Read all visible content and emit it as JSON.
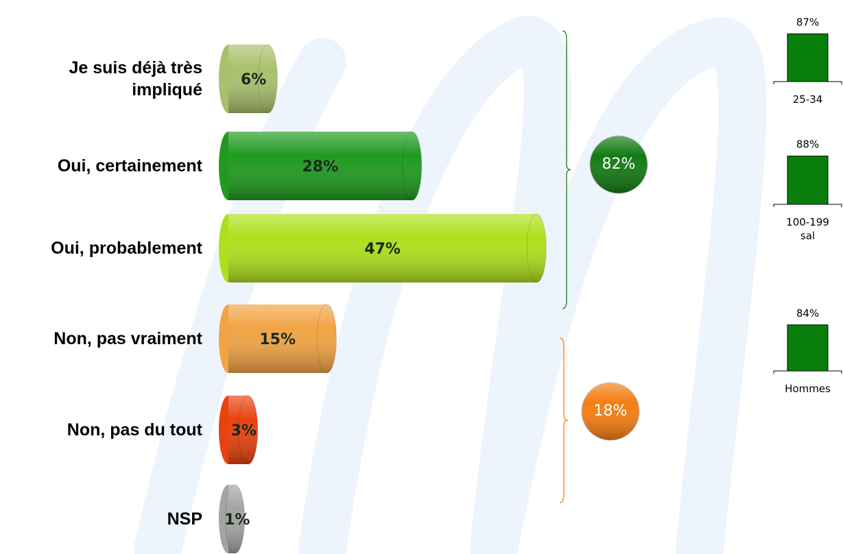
{
  "chart_data": [
    {
      "type": "hbar3d",
      "categories": [
        "Je suis déjà très impliqué",
        "Oui, certainement",
        "Oui, probablement",
        "Non, pas vraiment",
        "Non, pas du tout",
        "NSP"
      ],
      "values": [
        6,
        28,
        47,
        15,
        3,
        1
      ],
      "value_labels": [
        "6%",
        "28%",
        "47%",
        "15%",
        "3%",
        "1%"
      ],
      "colors": [
        "#a9c06c",
        "#1f9a1f",
        "#ade01c",
        "#f0a444",
        "#e8420e",
        "#a4a4a4"
      ],
      "xlim": [
        0,
        50
      ],
      "totals": [
        {
          "value": 82,
          "label": "82%",
          "color": "#137a13"
        },
        {
          "value": 18,
          "label": "18%",
          "color": "#f57e12"
        }
      ]
    },
    {
      "type": "minibar",
      "categories": [
        "25-34",
        "100-199 sal",
        "Hommes"
      ],
      "values": [
        87,
        88,
        84
      ],
      "value_labels": [
        "87%",
        "88%",
        "84%"
      ],
      "color": "#0b7f0b",
      "ylim": [
        0,
        100
      ]
    }
  ]
}
